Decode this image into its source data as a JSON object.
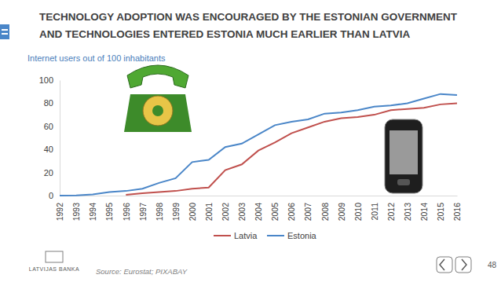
{
  "chart_data": {
    "type": "line",
    "title": [
      "TECHNOLOGY ADOPTION WAS ENCOURAGED BY THE ESTONIAN GOVERNMENT",
      "AND TECHNOLOGIES ENTERED ESTONIA MUCH EARLIER THAN LATVIA"
    ],
    "subtitle": "Internet users out of 100 inhabitants",
    "source": "Source: Eurostat; PIXABAY",
    "logo": "LATVIJAS BANKA",
    "page_number": 48,
    "categories": [
      "1992",
      "1993",
      "1994",
      "1995",
      "1996",
      "1997",
      "1998",
      "1999",
      "2000",
      "2001",
      "2002",
      "2003",
      "2004",
      "2005",
      "2006",
      "2007",
      "2008",
      "2009",
      "2010",
      "2011",
      "2012",
      "2013",
      "2014",
      "2015",
      "2016"
    ],
    "series": [
      {
        "name": "Latvia",
        "color": "#c0504d",
        "values": [
          null,
          null,
          null,
          null,
          0.7,
          2,
          3,
          4,
          6,
          7,
          22,
          27,
          39,
          46,
          54,
          59,
          64,
          67,
          68,
          70,
          74,
          75,
          76,
          79,
          80
        ]
      },
      {
        "name": "Estonia",
        "color": "#4a86c8",
        "values": [
          0,
          0.2,
          1,
          3,
          4,
          6,
          11,
          15,
          29,
          31,
          42,
          45,
          53,
          61,
          64,
          66,
          71,
          72,
          74,
          77,
          78,
          80,
          84,
          88,
          87
        ]
      }
    ],
    "ylim": [
      0,
      100
    ],
    "yticks": [
      0,
      20,
      40,
      60,
      80,
      100
    ],
    "grid": false,
    "legend": "bottom"
  }
}
